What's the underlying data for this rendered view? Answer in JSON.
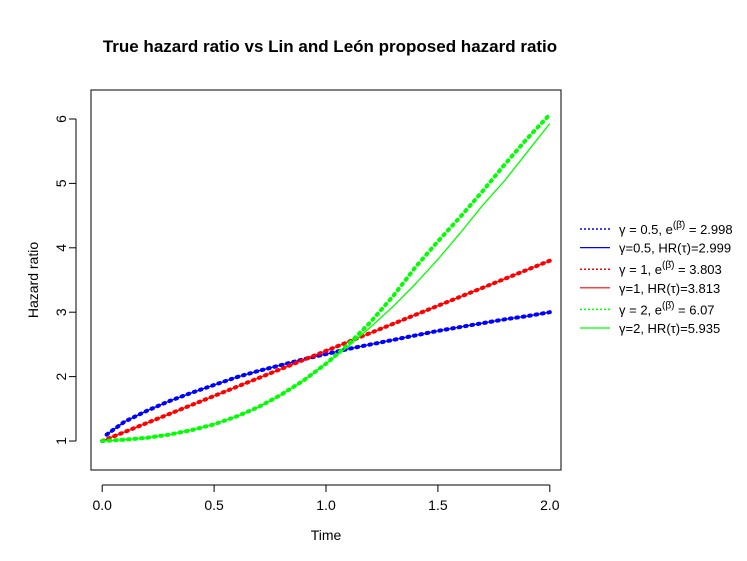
{
  "chart_data": {
    "type": "line",
    "title": "True hazard ratio vs Lin and León proposed hazard ratio",
    "xlabel": "Time",
    "ylabel": "Hazard ratio",
    "xlim": [
      -0.05,
      2.05
    ],
    "ylim": [
      0.55,
      6.45
    ],
    "x_ticks": [
      "0.0",
      "0.5",
      "1.0",
      "1.5",
      "2.0"
    ],
    "y_ticks": [
      "1",
      "2",
      "3",
      "4",
      "5",
      "6"
    ],
    "grid": false,
    "legend_position": "right, outside plot",
    "series": [
      {
        "name": "γ = 0.5,  e^(β̄) = 2.998",
        "legend_prefix": "γ = 0.5,  e",
        "legend_sup": "(β̄)",
        "legend_suffix": " = 2.998",
        "color": "#0000ff",
        "style": "dotted",
        "x": [
          0.02,
          0.1,
          0.2,
          0.3,
          0.4,
          0.5,
          0.6,
          0.7,
          0.8,
          0.9,
          1.0,
          1.1,
          1.2,
          1.3,
          1.4,
          1.5,
          1.6,
          1.7,
          1.8,
          1.9,
          2.0
        ],
        "y": [
          1.1,
          1.3,
          1.47,
          1.62,
          1.75,
          1.87,
          1.99,
          2.09,
          2.18,
          2.27,
          2.35,
          2.43,
          2.5,
          2.57,
          2.64,
          2.71,
          2.77,
          2.83,
          2.89,
          2.94,
          3.0
        ]
      },
      {
        "name": "γ=0.5, HR(τ)=2.999",
        "legend_prefix": "γ=0.5, HR(τ)=2.999",
        "legend_sup": "",
        "legend_suffix": "",
        "color": "#0000ff",
        "style": "solid",
        "x": [
          0.02,
          0.1,
          0.2,
          0.3,
          0.4,
          0.5,
          0.6,
          0.7,
          0.8,
          0.9,
          1.0,
          1.1,
          1.2,
          1.3,
          1.4,
          1.5,
          1.6,
          1.7,
          1.8,
          1.9,
          2.0
        ],
        "y": [
          1.1,
          1.3,
          1.47,
          1.62,
          1.75,
          1.87,
          1.99,
          2.09,
          2.18,
          2.27,
          2.35,
          2.43,
          2.5,
          2.57,
          2.64,
          2.71,
          2.77,
          2.83,
          2.89,
          2.94,
          3.0
        ]
      },
      {
        "name": "γ = 1,  e^(β̄) = 3.803",
        "legend_prefix": "γ = 1,  e",
        "legend_sup": "(β̄)",
        "legend_suffix": " = 3.803",
        "color": "#ff0000",
        "style": "dotted",
        "x": [
          0.0,
          0.1,
          0.2,
          0.3,
          0.4,
          0.5,
          0.6,
          0.7,
          0.8,
          0.9,
          1.0,
          1.1,
          1.2,
          1.3,
          1.4,
          1.5,
          1.6,
          1.7,
          1.8,
          1.9,
          2.0
        ],
        "y": [
          1.0,
          1.14,
          1.28,
          1.42,
          1.56,
          1.7,
          1.84,
          1.98,
          2.12,
          2.26,
          2.4,
          2.54,
          2.68,
          2.82,
          2.96,
          3.1,
          3.24,
          3.38,
          3.52,
          3.66,
          3.8
        ]
      },
      {
        "name": "γ=1, HR(τ)=3.813",
        "legend_prefix": "γ=1, HR(τ)=3.813",
        "legend_sup": "",
        "legend_suffix": "",
        "color": "#ff0000",
        "style": "solid",
        "x": [
          0.0,
          0.1,
          0.2,
          0.3,
          0.4,
          0.5,
          0.6,
          0.7,
          0.8,
          0.9,
          1.0,
          1.1,
          1.2,
          1.3,
          1.4,
          1.5,
          1.6,
          1.7,
          1.8,
          1.9,
          2.0
        ],
        "y": [
          1.0,
          1.14,
          1.28,
          1.42,
          1.56,
          1.7,
          1.84,
          1.98,
          2.12,
          2.26,
          2.4,
          2.54,
          2.68,
          2.82,
          2.96,
          3.1,
          3.24,
          3.38,
          3.52,
          3.66,
          3.8
        ]
      },
      {
        "name": "γ = 2,  e^(β̄) = 6.07",
        "legend_prefix": "γ = 2,  e",
        "legend_sup": "(β̄)",
        "legend_suffix": " = 6.07",
        "color": "#00ff00",
        "style": "dotted",
        "x": [
          0.0,
          0.1,
          0.2,
          0.3,
          0.4,
          0.5,
          0.6,
          0.7,
          0.8,
          0.9,
          1.0,
          1.1,
          1.2,
          1.3,
          1.4,
          1.5,
          1.6,
          1.7,
          1.8,
          1.9,
          2.0
        ],
        "y": [
          1.0,
          1.02,
          1.05,
          1.1,
          1.17,
          1.26,
          1.38,
          1.53,
          1.72,
          1.94,
          2.2,
          2.5,
          2.85,
          3.25,
          3.7,
          4.1,
          4.48,
          4.88,
          5.3,
          5.7,
          6.07
        ]
      },
      {
        "name": "γ=2, HR(τ)=5.935",
        "legend_prefix": "γ=2, HR(τ)=5.935",
        "legend_sup": "",
        "legend_suffix": "",
        "color": "#00ff00",
        "style": "solid",
        "x": [
          0.0,
          0.1,
          0.2,
          0.3,
          0.4,
          0.5,
          0.6,
          0.7,
          0.8,
          0.9,
          1.0,
          1.1,
          1.2,
          1.3,
          1.4,
          1.5,
          1.6,
          1.7,
          1.8,
          1.9,
          2.0
        ],
        "y": [
          1.0,
          1.02,
          1.05,
          1.1,
          1.17,
          1.26,
          1.38,
          1.53,
          1.72,
          1.94,
          2.2,
          2.47,
          2.77,
          3.09,
          3.44,
          3.82,
          4.23,
          4.66,
          5.05,
          5.49,
          5.93
        ]
      }
    ]
  }
}
